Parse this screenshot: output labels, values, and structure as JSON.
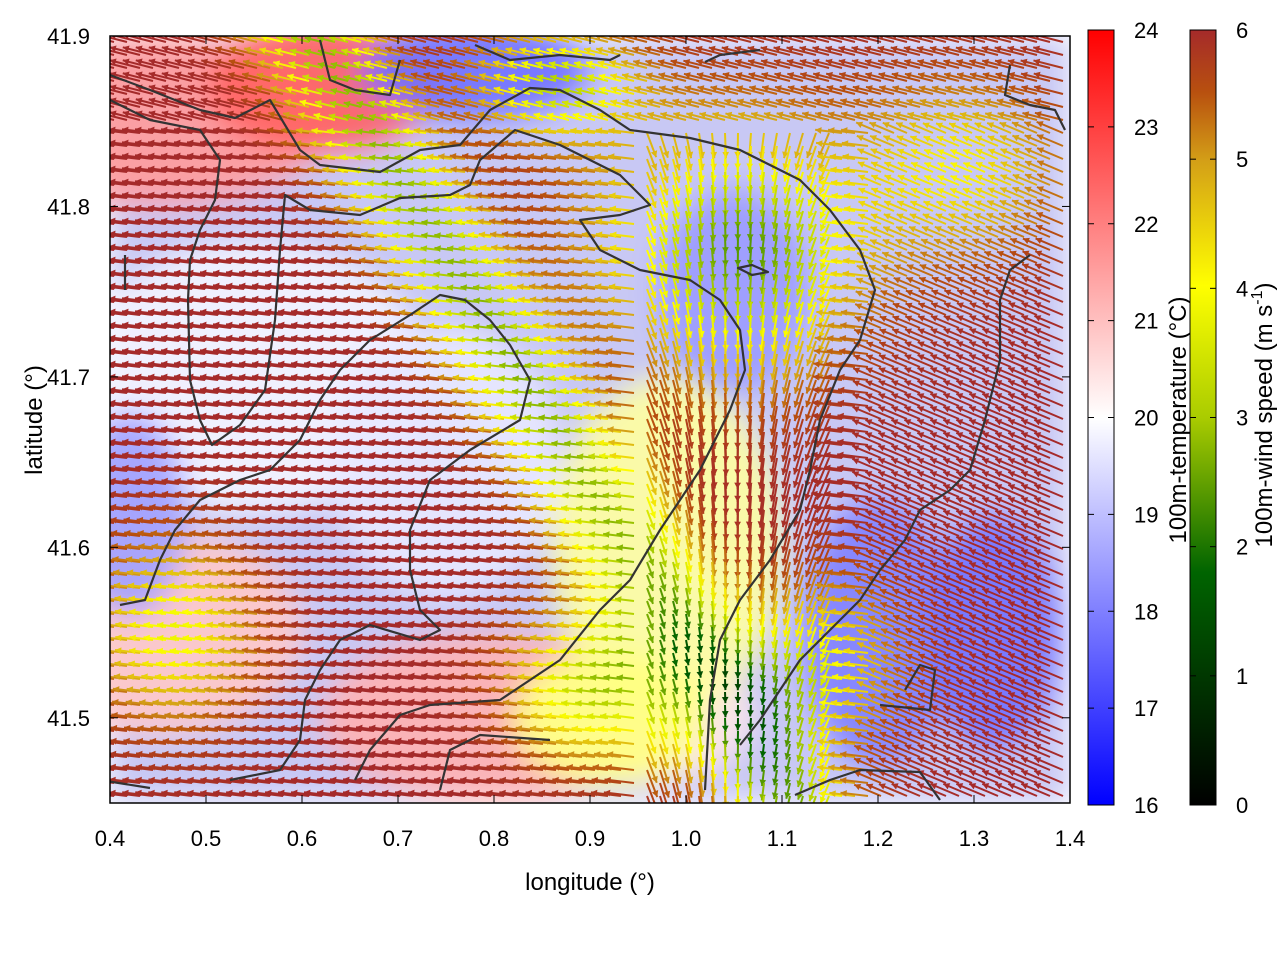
{
  "chart_data": {
    "type": "heatmap",
    "xlabel": "longitude (°)",
    "ylabel": "latitude (°)",
    "xlim": [
      0.4,
      1.4
    ],
    "ylim": [
      41.45,
      41.9
    ],
    "x_ticks": [
      "0.4",
      "0.5",
      "0.6",
      "0.7",
      "0.8",
      "0.9",
      "1.0",
      "1.1",
      "1.2",
      "1.3",
      "1.4"
    ],
    "y_ticks": [
      "41.5",
      "41.6",
      "41.7",
      "41.8",
      "41.9"
    ],
    "temperature": {
      "label": "100m-temperature (°C)",
      "range": [
        16,
        24
      ],
      "ticks": [
        "16",
        "17",
        "18",
        "19",
        "20",
        "21",
        "22",
        "23",
        "24"
      ],
      "colors": [
        "#0000ff",
        "#ffffff",
        "#ff0000"
      ]
    },
    "wind_speed": {
      "label_main": "100m-wind speed (m s",
      "label_sup": "-1",
      "label_end": ")",
      "range": [
        0,
        6
      ],
      "ticks": [
        "0",
        "1",
        "2",
        "3",
        "4",
        "5",
        "6"
      ],
      "colors": [
        "#000000",
        "#006400",
        "#aacc00",
        "#ffff00",
        "#d4a017",
        "#b8500f",
        "#a52a2a"
      ]
    },
    "contour_color": "#333333"
  }
}
